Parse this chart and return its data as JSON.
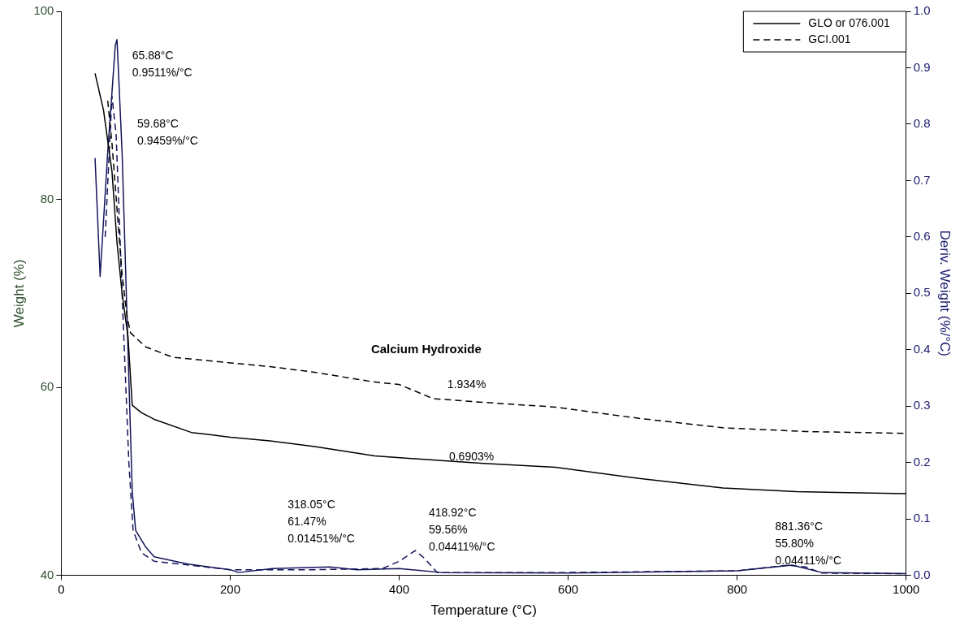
{
  "chart_data": {
    "type": "line",
    "xlabel": "Temperature (°C)",
    "ylabel": "Weight (%)",
    "y2label": "Deriv. Weight (%/°C)",
    "xlim": [
      0,
      1000
    ],
    "xticks": [
      0,
      200,
      400,
      600,
      800,
      1000
    ],
    "ylim": [
      40,
      100
    ],
    "yticks": [
      40,
      60,
      80,
      100
    ],
    "y2lim": [
      0,
      1
    ],
    "y2ticks": [
      {
        "value": 0,
        "label": "0.0"
      },
      {
        "value": 0.1,
        "label": "0.1"
      },
      {
        "value": 0.2,
        "label": "0.2"
      },
      {
        "value": 0.3,
        "label": "0.3"
      },
      {
        "value": 0.4,
        "label": "0.4"
      },
      {
        "value": 0.5,
        "label": "0.5"
      },
      {
        "value": 0.6,
        "label": "0.6"
      },
      {
        "value": 0.7,
        "label": "0.7"
      },
      {
        "value": 0.8,
        "label": "0.8"
      },
      {
        "value": 0.9,
        "label": "0.9"
      },
      {
        "value": 1,
        "label": "1.0"
      }
    ],
    "grid": false,
    "legend": "top right",
    "marker": "none",
    "series": [
      {
        "name": "GLO or 076.001",
        "color": "#000000",
        "line_style": "solid",
        "x": [
          40,
          50,
          60,
          66,
          72,
          79,
          84,
          95,
          110,
          154,
          200,
          247,
          300,
          371,
          450,
          500,
          585,
          684,
          783,
          870,
          1000
        ],
        "values": [
          93.4,
          89.5,
          83,
          75.4,
          70,
          65.4,
          58.1,
          57.3,
          56.6,
          55.2,
          54.7,
          54.3,
          53.7,
          52.7,
          52.2,
          51.9,
          51.5,
          50.3,
          49.3,
          48.9,
          48.7
        ]
      },
      {
        "name": "GCI.001",
        "color": "#000000",
        "line_style": "dashed",
        "x": [
          55,
          60,
          66,
          72,
          78,
          82,
          100,
          132,
          200,
          247,
          300,
          368,
          400,
          419,
          440,
          500,
          585,
          684,
          783,
          881,
          1000
        ],
        "values": [
          90.5,
          86,
          79,
          72,
          67.5,
          65.8,
          64.3,
          63.2,
          62.6,
          62.2,
          61.6,
          60.6,
          60.3,
          59.6,
          58.8,
          58.4,
          57.9,
          56.7,
          55.7,
          55.3,
          55.1
        ]
      },
      {
        "color": "#14145a",
        "line_style": "solid",
        "axis": "y2",
        "x": [
          40,
          46,
          55,
          64,
          66,
          72,
          78,
          84,
          88,
          100,
          110,
          150,
          200,
          210,
          250,
          318,
          350,
          400,
          450,
          600,
          800,
          865,
          900,
          1000
        ],
        "values": [
          0.74,
          0.53,
          0.75,
          0.94,
          0.95,
          0.75,
          0.45,
          0.15,
          0.08,
          0.05,
          0.033,
          0.02,
          0.01,
          0.005,
          0.012,
          0.015,
          0.01,
          0.012,
          0.005,
          0.004,
          0.008,
          0.018,
          0.005,
          0.003
        ]
      },
      {
        "color": "#14145a",
        "line_style": "dashed",
        "axis": "y2",
        "x": [
          52,
          60,
          65,
          72,
          80,
          85,
          95,
          110,
          200,
          300,
          380,
          400,
          419,
          430,
          445,
          600,
          800,
          860,
          881,
          900,
          1000
        ],
        "values": [
          0.6,
          0.85,
          0.78,
          0.5,
          0.2,
          0.08,
          0.04,
          0.025,
          0.01,
          0.01,
          0.012,
          0.025,
          0.044,
          0.03,
          0.005,
          0.005,
          0.008,
          0.018,
          0.015,
          0.004,
          0.003
        ]
      }
    ],
    "annotations": [
      "65.88°C\n0.9511%/°C",
      "59.68°C\n0.9459%/°C",
      "Calcium Hydroxide",
      "318.05°C\n61.47%\n0.01451%/°C",
      "418.92°C\n59.56%\n0.04411%/°C",
      "881.36°C\n55.80%\n0.04411%/°C",
      "1.934%",
      "0.6903%"
    ]
  }
}
